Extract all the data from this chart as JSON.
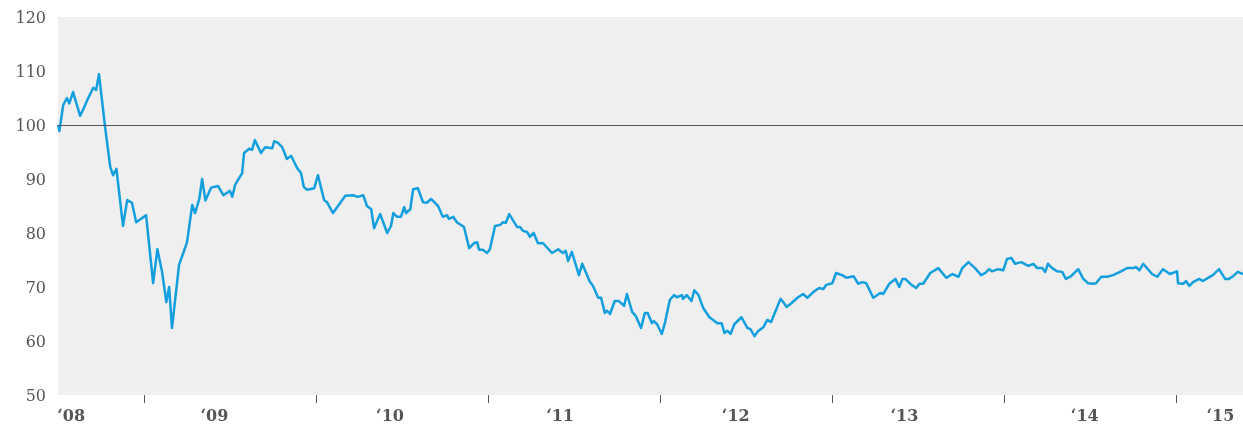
{
  "chart_data": {
    "type": "line",
    "x": [
      "2008-07-02",
      "2008-07-05",
      "2008-07-13",
      "2008-07-21",
      "2008-07-26",
      "2008-08-03",
      "2008-08-18",
      "2008-08-24",
      "2008-09-02",
      "2008-09-15",
      "2008-09-21",
      "2008-09-27",
      "2008-10-10",
      "2008-10-21",
      "2008-10-27",
      "2008-11-03",
      "2008-11-17",
      "2008-11-26",
      "2008-12-06",
      "2008-12-15",
      "2009-01-05",
      "2009-01-20",
      "2009-01-29",
      "2009-02-08",
      "2009-02-17",
      "2009-02-23",
      "2009-03-01",
      "2009-03-16",
      "2009-03-25",
      "2009-04-02",
      "2009-04-13",
      "2009-04-19",
      "2009-04-28",
      "2009-05-04",
      "2009-05-11",
      "2009-05-23",
      "2009-06-07",
      "2009-06-18",
      "2009-07-02",
      "2009-07-07",
      "2009-07-13",
      "2009-07-28",
      "2009-08-01",
      "2009-08-12",
      "2009-08-18",
      "2009-08-24",
      "2009-09-06",
      "2009-09-15",
      "2009-09-30",
      "2009-10-04",
      "2009-10-12",
      "2009-10-21",
      "2009-10-31",
      "2009-11-09",
      "2009-11-22",
      "2009-11-30",
      "2009-12-06",
      "2009-12-13",
      "2009-12-28",
      "2010-01-05",
      "2010-01-18",
      "2010-01-24",
      "2010-02-06",
      "2010-03-04",
      "2010-03-20",
      "2010-03-31",
      "2010-04-11",
      "2010-04-19",
      "2010-04-28",
      "2010-05-04",
      "2010-05-17",
      "2010-06-01",
      "2010-06-09",
      "2010-06-14",
      "2010-06-22",
      "2010-06-30",
      "2010-07-07",
      "2010-07-11",
      "2010-07-20",
      "2010-07-26",
      "2010-08-05",
      "2010-08-16",
      "2010-08-24",
      "2010-09-02",
      "2010-09-17",
      "2010-09-27",
      "2010-10-06",
      "2010-10-10",
      "2010-10-19",
      "2010-10-27",
      "2010-11-11",
      "2010-11-22",
      "2010-12-02",
      "2010-12-09",
      "2010-12-13",
      "2010-12-21",
      "2010-12-30",
      "2011-01-05",
      "2011-01-16",
      "2011-01-27",
      "2011-02-02",
      "2011-02-08",
      "2011-02-15",
      "2011-03-04",
      "2011-03-10",
      "2011-03-16",
      "2011-03-25",
      "2011-03-31",
      "2011-04-08",
      "2011-04-17",
      "2011-04-28",
      "2011-05-17",
      "2011-05-30",
      "2011-06-09",
      "2011-06-15",
      "2011-06-20",
      "2011-06-28",
      "2011-07-13",
      "2011-07-20",
      "2011-08-05",
      "2011-08-12",
      "2011-08-23",
      "2011-08-29",
      "2011-09-06",
      "2011-09-11",
      "2011-09-17",
      "2011-09-27",
      "2011-10-06",
      "2011-10-17",
      "2011-10-23",
      "2011-11-03",
      "2011-11-11",
      "2011-11-22",
      "2011-11-30",
      "2011-12-06",
      "2011-12-15",
      "2011-12-19",
      "2011-12-26",
      "2012-01-05",
      "2012-01-12",
      "2012-01-22",
      "2012-01-31",
      "2012-02-06",
      "2012-02-17",
      "2012-02-19",
      "2012-02-27",
      "2012-03-08",
      "2012-03-14",
      "2012-03-23",
      "2012-04-02",
      "2012-04-15",
      "2012-04-23",
      "2012-05-02",
      "2012-05-11",
      "2012-05-17",
      "2012-05-23",
      "2012-05-30",
      "2012-06-07",
      "2012-06-22",
      "2012-07-05",
      "2012-07-11",
      "2012-07-20",
      "2012-07-26",
      "2012-08-08",
      "2012-08-16",
      "2012-08-24",
      "2012-09-02",
      "2012-09-13",
      "2012-09-19",
      "2012-09-26",
      "2012-10-06",
      "2012-10-19",
      "2012-10-31",
      "2012-11-09",
      "2012-11-22",
      "2012-12-04",
      "2012-12-13",
      "2012-12-19",
      "2013-01-01",
      "2013-01-09",
      "2013-01-22",
      "2013-01-31",
      "2013-02-15",
      "2013-02-25",
      "2013-03-06",
      "2013-03-14",
      "2013-03-29",
      "2013-04-13",
      "2013-04-19",
      "2013-05-02",
      "2013-05-15",
      "2013-05-23",
      "2013-05-30",
      "2013-06-05",
      "2013-06-18",
      "2013-06-28",
      "2013-07-05",
      "2013-07-13",
      "2013-07-28",
      "2013-08-14",
      "2013-08-31",
      "2013-09-13",
      "2013-09-26",
      "2013-10-04",
      "2013-10-17",
      "2013-10-31",
      "2013-11-13",
      "2013-11-22",
      "2013-11-30",
      "2013-12-06",
      "2013-12-19",
      "2013-12-30",
      "2014-01-07",
      "2014-01-16",
      "2014-01-24",
      "2014-02-06",
      "2014-02-21",
      "2014-03-04",
      "2014-03-12",
      "2014-03-23",
      "2014-03-29",
      "2014-04-04",
      "2014-04-13",
      "2014-04-23",
      "2014-05-04",
      "2014-05-12",
      "2014-05-23",
      "2014-06-07",
      "2014-06-18",
      "2014-06-28",
      "2014-07-09",
      "2014-07-15",
      "2014-07-26",
      "2014-08-08",
      "2014-08-20",
      "2014-09-04",
      "2014-09-19",
      "2014-10-02",
      "2014-10-08",
      "2014-10-15",
      "2014-10-23",
      "2014-11-11",
      "2014-11-22",
      "2014-12-04",
      "2014-12-19",
      "2015-01-03",
      "2015-01-05",
      "2015-01-16",
      "2015-01-22",
      "2015-01-29",
      "2015-02-06",
      "2015-02-19",
      "2015-02-27",
      "2015-03-10",
      "2015-03-20",
      "2015-04-02",
      "2015-04-15",
      "2015-04-23",
      "2015-05-02",
      "2015-05-12",
      "2015-05-23"
    ],
    "series": [
      {
        "color": "#139fde",
        "values": [
          100,
          98.9,
          103.7,
          105,
          104,
          106.1,
          101.7,
          102.8,
          104.6,
          106.9,
          106.5,
          109.4,
          99.6,
          92.2,
          90.7,
          91.9,
          81.3,
          86.1,
          85.6,
          82,
          83.3,
          70.7,
          77,
          72.8,
          67.2,
          70,
          62.4,
          74.1,
          76.3,
          78.3,
          85.2,
          83.7,
          86.3,
          90,
          86,
          88.4,
          88.7,
          87,
          87.8,
          86.7,
          88.9,
          91.1,
          94.8,
          95.6,
          95.4,
          97.2,
          94.8,
          95.9,
          95.7,
          97,
          96.7,
          95.9,
          93.7,
          94.3,
          92,
          91.1,
          88.5,
          88,
          88.3,
          90.7,
          86.1,
          85.7,
          83.7,
          86.9,
          87,
          86.7,
          87,
          85,
          84.4,
          80.9,
          83.5,
          80,
          81.3,
          83.7,
          83,
          83,
          84.8,
          83.7,
          84.4,
          88.1,
          88.3,
          85.7,
          85.6,
          86.3,
          85,
          83,
          83.3,
          82.6,
          83,
          82,
          81.1,
          77.2,
          78.1,
          78.3,
          76.9,
          76.9,
          76.3,
          77,
          81.3,
          81.5,
          82,
          81.9,
          83.5,
          81.1,
          81.1,
          80.4,
          80.2,
          79.3,
          80,
          78.1,
          78.1,
          76.3,
          77,
          76.3,
          76.7,
          74.8,
          76.5,
          72.2,
          74.3,
          71,
          70.2,
          68,
          68,
          65.2,
          65.6,
          65,
          67.4,
          67.4,
          66.5,
          68.7,
          65.4,
          64.6,
          62.4,
          65.2,
          65.2,
          63.3,
          63.7,
          63.1,
          61.3,
          63.5,
          67.6,
          68.5,
          68.1,
          68.5,
          67.8,
          68.5,
          67.4,
          69.4,
          68.5,
          66.1,
          64.4,
          63.9,
          63.3,
          63.3,
          61.5,
          61.9,
          61.3,
          63.1,
          64.4,
          62.4,
          62.2,
          60.9,
          61.7,
          62.6,
          63.9,
          63.5,
          65.4,
          67.8,
          67.2,
          66.3,
          67,
          68,
          68.7,
          68,
          69.1,
          69.8,
          69.6,
          70.4,
          70.7,
          72.6,
          72.2,
          71.7,
          72,
          70.6,
          70.9,
          70.7,
          68,
          68.9,
          68.7,
          70.6,
          71.5,
          70,
          71.5,
          71.5,
          70.4,
          69.8,
          70.6,
          70.6,
          72.6,
          73.5,
          71.7,
          72.4,
          71.9,
          73.5,
          74.6,
          73.5,
          72.2,
          72.6,
          73.3,
          72.9,
          73.3,
          73.1,
          75.2,
          75.4,
          74.3,
          74.6,
          73.9,
          74.3,
          73.5,
          73.5,
          72.8,
          74.3,
          73.5,
          72.9,
          72.8,
          71.5,
          72,
          73.3,
          71.5,
          70.7,
          70.6,
          70.7,
          71.9,
          71.9,
          72.2,
          72.8,
          73.5,
          73.5,
          73.7,
          73.1,
          74.3,
          72.4,
          71.9,
          73.3,
          72.4,
          72.9,
          70.7,
          70.6,
          71.1,
          70.2,
          70.9,
          71.5,
          71.1,
          71.7,
          72.2,
          73.3,
          71.5,
          71.5,
          72,
          72.8,
          72.4
        ]
      }
    ],
    "xlim": [
      "2008-07-02",
      "2015-05-23"
    ],
    "xticks": [
      {
        "value": "2008-07-30",
        "label": "‘08"
      },
      {
        "value": "2009-01-01",
        "label": null
      },
      {
        "value": "2009-05-30",
        "label": "‘09"
      },
      {
        "value": "2010-01-01",
        "label": null
      },
      {
        "value": "2010-06-07",
        "label": "‘10"
      },
      {
        "value": "2011-01-01",
        "label": null
      },
      {
        "value": "2011-06-03",
        "label": "‘11"
      },
      {
        "value": "2012-01-01",
        "label": null
      },
      {
        "value": "2012-06-10",
        "label": "‘12"
      },
      {
        "value": "2013-01-01",
        "label": null
      },
      {
        "value": "2013-06-03",
        "label": "‘13"
      },
      {
        "value": "2014-01-01",
        "label": null
      },
      {
        "value": "2014-06-21",
        "label": "‘14"
      },
      {
        "value": "2015-01-01",
        "label": null
      },
      {
        "value": "2015-04-05",
        "label": "‘15"
      }
    ],
    "ylim": [
      50,
      120
    ],
    "yticks": [
      50,
      60,
      70,
      80,
      90,
      100,
      110,
      120
    ],
    "ref_lines": [
      {
        "axis": "y",
        "value": 100,
        "color": "#555555"
      }
    ],
    "grid": false,
    "marker": "none",
    "line_style": "solid"
  }
}
